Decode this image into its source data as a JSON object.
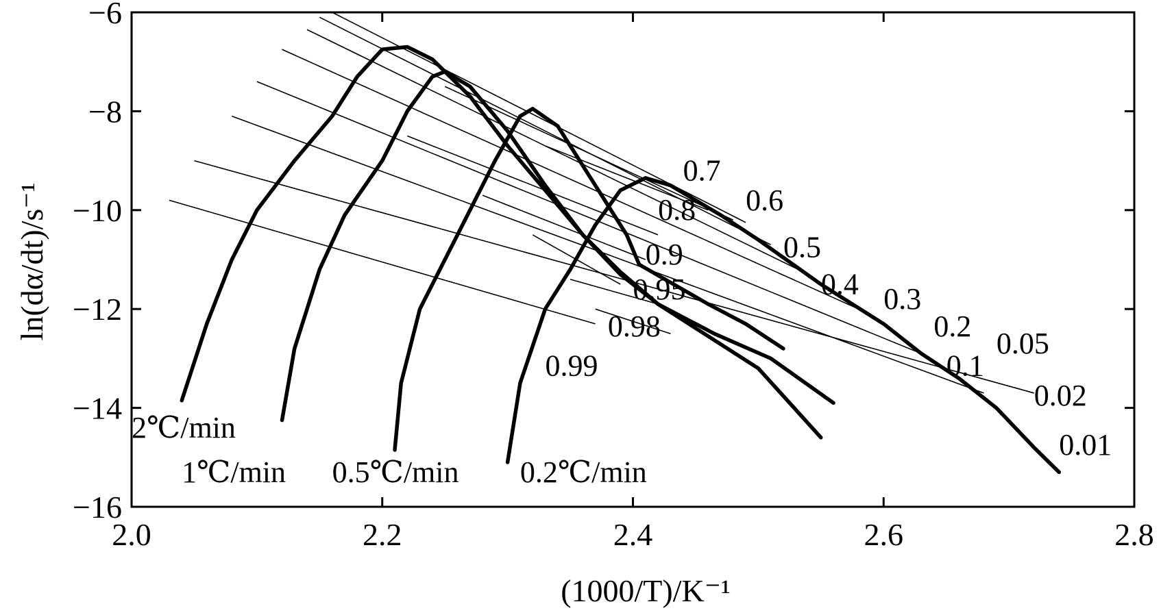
{
  "chart_data": {
    "type": "line",
    "xlabel": "(1000/T)/K⁻¹",
    "ylabel": "ln(dα/dt)/s⁻¹",
    "xlim": [
      2.0,
      2.8
    ],
    "ylim": [
      -16,
      -6
    ],
    "xticks": [
      2.0,
      2.2,
      2.4,
      2.6,
      2.8
    ],
    "xtick_labels": [
      "2.0",
      "2.2",
      "2.4",
      "2.6",
      "2.8"
    ],
    "yticks": [
      -6,
      -8,
      -10,
      -12,
      -14,
      -16
    ],
    "ytick_labels": [
      "−6",
      "−8",
      "−10",
      "−12",
      "−14",
      "−16"
    ],
    "grid": false,
    "series": [
      {
        "name": "2℃/min",
        "points": [
          [
            2.04,
            -13.85
          ],
          [
            2.06,
            -12.3
          ],
          [
            2.08,
            -11.0
          ],
          [
            2.1,
            -10.0
          ],
          [
            2.13,
            -9.0
          ],
          [
            2.16,
            -8.1
          ],
          [
            2.18,
            -7.3
          ],
          [
            2.2,
            -6.75
          ],
          [
            2.22,
            -6.7
          ],
          [
            2.24,
            -6.95
          ],
          [
            2.27,
            -7.7
          ],
          [
            2.3,
            -8.7
          ],
          [
            2.33,
            -9.6
          ],
          [
            2.36,
            -10.5
          ],
          [
            2.39,
            -11.25
          ],
          [
            2.42,
            -11.9
          ],
          [
            2.465,
            -12.5
          ],
          [
            2.51,
            -13.0
          ],
          [
            2.56,
            -13.9
          ]
        ]
      },
      {
        "name": "1℃/min",
        "points": [
          [
            2.12,
            -14.25
          ],
          [
            2.13,
            -12.8
          ],
          [
            2.15,
            -11.2
          ],
          [
            2.17,
            -10.1
          ],
          [
            2.2,
            -9.0
          ],
          [
            2.22,
            -8.0
          ],
          [
            2.24,
            -7.3
          ],
          [
            2.25,
            -7.2
          ],
          [
            2.27,
            -7.5
          ],
          [
            2.3,
            -8.4
          ],
          [
            2.33,
            -9.5
          ],
          [
            2.36,
            -10.5
          ],
          [
            2.39,
            -11.3
          ],
          [
            2.42,
            -11.9
          ],
          [
            2.5,
            -13.2
          ],
          [
            2.55,
            -14.6
          ]
        ]
      },
      {
        "name": "0.5℃/min",
        "points": [
          [
            2.21,
            -14.85
          ],
          [
            2.215,
            -13.5
          ],
          [
            2.23,
            -12.0
          ],
          [
            2.25,
            -11.0
          ],
          [
            2.27,
            -10.0
          ],
          [
            2.29,
            -9.0
          ],
          [
            2.31,
            -8.1
          ],
          [
            2.32,
            -7.95
          ],
          [
            2.34,
            -8.3
          ],
          [
            2.37,
            -9.5
          ],
          [
            2.395,
            -10.5
          ],
          [
            2.405,
            -11.1
          ],
          [
            2.46,
            -11.9
          ],
          [
            2.49,
            -12.3
          ],
          [
            2.52,
            -12.8
          ]
        ]
      },
      {
        "name": "0.2℃/min",
        "points": [
          [
            2.3,
            -15.1
          ],
          [
            2.31,
            -13.5
          ],
          [
            2.33,
            -12.0
          ],
          [
            2.35,
            -11.2
          ],
          [
            2.37,
            -10.3
          ],
          [
            2.39,
            -9.6
          ],
          [
            2.41,
            -9.35
          ],
          [
            2.43,
            -9.5
          ],
          [
            2.45,
            -9.8
          ],
          [
            2.47,
            -10.1
          ],
          [
            2.5,
            -10.6
          ],
          [
            2.55,
            -11.5
          ],
          [
            2.6,
            -12.3
          ],
          [
            2.63,
            -12.9
          ],
          [
            2.66,
            -13.4
          ],
          [
            2.69,
            -14.0
          ],
          [
            2.72,
            -14.8
          ],
          [
            2.74,
            -15.3
          ]
        ]
      }
    ],
    "isoconversional_lines": [
      {
        "alpha": "0.01",
        "label": "0.01",
        "x1": 2.03,
        "y1": -9.8,
        "x2": 2.37,
        "y2": -12.3
      },
      {
        "alpha": "0.02",
        "label": "0.02",
        "x1": 2.05,
        "y1": -9.0,
        "x2": 2.72,
        "y2": -13.7
      },
      {
        "alpha": "0.05",
        "label": "0.05",
        "x1": 2.08,
        "y1": -8.1,
        "x2": 2.68,
        "y2": -13.7
      },
      {
        "alpha": "0.1",
        "label": "0.1",
        "x1": 2.1,
        "y1": -7.4,
        "x2": 2.63,
        "y2": -12.9
      },
      {
        "alpha": "0.2",
        "label": "0.2",
        "x1": 2.12,
        "y1": -6.75,
        "x2": 2.58,
        "y2": -12.0
      },
      {
        "alpha": "0.3",
        "label": "0.3",
        "x1": 2.14,
        "y1": -6.35,
        "x2": 2.54,
        "y2": -11.3
      },
      {
        "alpha": "0.4",
        "label": "0.4",
        "x1": 2.15,
        "y1": -6.1,
        "x2": 2.51,
        "y2": -10.7
      },
      {
        "alpha": "0.5",
        "label": "0.5",
        "x1": 2.16,
        "y1": -6.0,
        "x2": 2.49,
        "y2": -10.25
      },
      {
        "alpha": "0.6",
        "label": "0.6",
        "x1": 2.25,
        "y1": -7.5,
        "x2": 2.48,
        "y2": -10.2
      },
      {
        "alpha": "0.7",
        "label": "0.7",
        "x1": 2.33,
        "y1": -8.7,
        "x2": 2.46,
        "y2": -10.0
      },
      {
        "alpha": "0.8",
        "label": "0.8",
        "x1": 2.22,
        "y1": -8.5,
        "x2": 2.42,
        "y2": -10.5
      },
      {
        "alpha": "0.9",
        "label": "0.9",
        "x1": 2.28,
        "y1": -9.7,
        "x2": 2.41,
        "y2": -11.0
      },
      {
        "alpha": "0.95",
        "label": "0.95",
        "x1": 2.32,
        "y1": -10.5,
        "x2": 2.39,
        "y2": -11.5
      },
      {
        "alpha": "0.98",
        "label": "0.98",
        "x1": 2.35,
        "y1": -11.4,
        "x2": 2.42,
        "y2": -11.9
      },
      {
        "alpha": "0.99",
        "label": "0.99",
        "x1": 2.37,
        "y1": -12.0,
        "x2": 2.43,
        "y2": -12.5
      }
    ],
    "iso_label_positions": [
      {
        "label": "0.7",
        "x": 2.44,
        "y": -9.4
      },
      {
        "label": "0.6",
        "x": 2.49,
        "y": -10.0
      },
      {
        "label": "0.8",
        "x": 2.42,
        "y": -10.2
      },
      {
        "label": "0.5",
        "x": 2.52,
        "y": -10.95
      },
      {
        "label": "0.4",
        "x": 2.55,
        "y": -11.7
      },
      {
        "label": "0.3",
        "x": 2.6,
        "y": -12.0
      },
      {
        "label": "0.9",
        "x": 2.41,
        "y": -11.1
      },
      {
        "label": "0.95",
        "x": 2.4,
        "y": -11.8
      },
      {
        "label": "0.2",
        "x": 2.64,
        "y": -12.55
      },
      {
        "label": "0.98",
        "x": 2.38,
        "y": -12.55
      },
      {
        "label": "0.05",
        "x": 2.69,
        "y": -12.9
      },
      {
        "label": "0.1",
        "x": 2.65,
        "y": -13.35
      },
      {
        "label": "0.99",
        "x": 2.33,
        "y": -13.35
      },
      {
        "label": "0.02",
        "x": 2.72,
        "y": -13.95
      },
      {
        "label": "0.01",
        "x": 2.74,
        "y": -14.95
      }
    ],
    "rate_label_positions": [
      {
        "label": "2℃/min",
        "x": 2.0,
        "y": -14.6
      },
      {
        "label": "1℃/min",
        "x": 2.04,
        "y": -15.5
      },
      {
        "label": "0.5℃/min",
        "x": 2.16,
        "y": -15.5
      },
      {
        "label": "0.2℃/min",
        "x": 2.31,
        "y": -15.5
      }
    ]
  }
}
